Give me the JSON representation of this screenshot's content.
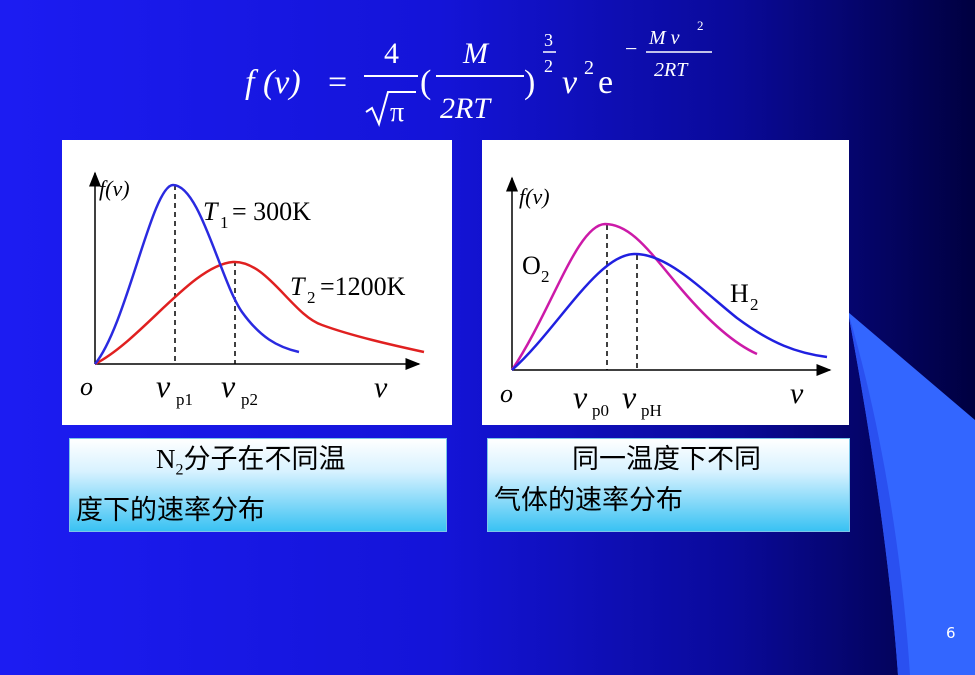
{
  "formula": {
    "lhs": "f (v)",
    "equals": "=",
    "coef_num": "4",
    "coef_den": "π",
    "frac_num": "M",
    "frac_den": "2RT",
    "exp_num": "3",
    "exp_den": "2",
    "v_sq": "v",
    "two": "2",
    "e": "e",
    "e_minus": "−",
    "e_exp_num": "M v",
    "e_exp_den": "2RT"
  },
  "left_chart": {
    "y_label": "f(v)",
    "origin": "o",
    "x_label": "v",
    "vp1": "v",
    "vp1_sub": "p1",
    "vp2": "v",
    "vp2_sub": "p2",
    "t1_label": "T",
    "t1_sub": "1",
    "t1_value": "= 300K",
    "t2_label": "T",
    "t2_sub": "2",
    "t2_value": "=1200K",
    "colors": {
      "t1": "#2a2ae0",
      "t2": "#e02020"
    }
  },
  "right_chart": {
    "y_label": "f(v)",
    "origin": "o",
    "x_label": "v",
    "vp0": "v",
    "vp0_sub": "p0",
    "vpH": "v",
    "vpH_sub": "pH",
    "o2_label": "O",
    "o2_sub": "2",
    "h2_label": "H",
    "h2_sub": "2",
    "colors": {
      "o2": "#cc1aa8",
      "h2": "#2020e0"
    }
  },
  "caption_left": {
    "n_symbol": "N",
    "n_sub": "2",
    "line1_rest": "分子在不同温",
    "line2": "度下的速率分布"
  },
  "caption_right": {
    "line1": "同一温度下不同",
    "line2": "气体的速率分布"
  },
  "page_number": "6"
}
